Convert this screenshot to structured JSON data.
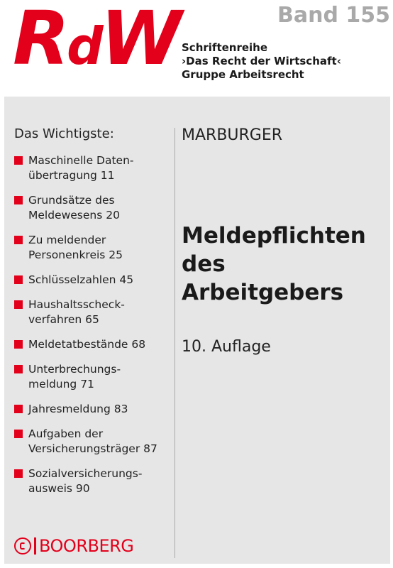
{
  "header": {
    "logo_big_R": "R",
    "logo_small_d": "d",
    "logo_big_W": "W",
    "band": "Band 155",
    "series_line1": "Schriftenreihe",
    "series_line2": "›Das Recht der Wirtschaft‹",
    "series_line3": "Gruppe Arbeitsrecht"
  },
  "contents": {
    "heading": "Das Wichtigste:",
    "items": [
      "Maschinelle Daten-\nübertragung 11",
      "Grundsätze des\nMeldewesens 20",
      "Zu meldender\nPersonenkreis 25",
      "Schlüsselzahlen 45",
      "Haushaltsscheck-\nverfahren 65",
      "Meldetatbestände 68",
      "Unterbrechungs-\nmeldung 71",
      "Jahresmeldung 83",
      "Aufgaben der\nVersicherungsträger 87",
      "Sozialversicherungs-\nausweis 90"
    ]
  },
  "book": {
    "author": "MARBURGER",
    "title": "Meldepflichten\ndes\nArbeitgebers",
    "edition": "10. Auflage"
  },
  "publisher": {
    "name": "BOORBERG"
  },
  "colors": {
    "accent": "#e3001b",
    "panel": "#e6e6e6",
    "band": "#a9a9a9"
  }
}
